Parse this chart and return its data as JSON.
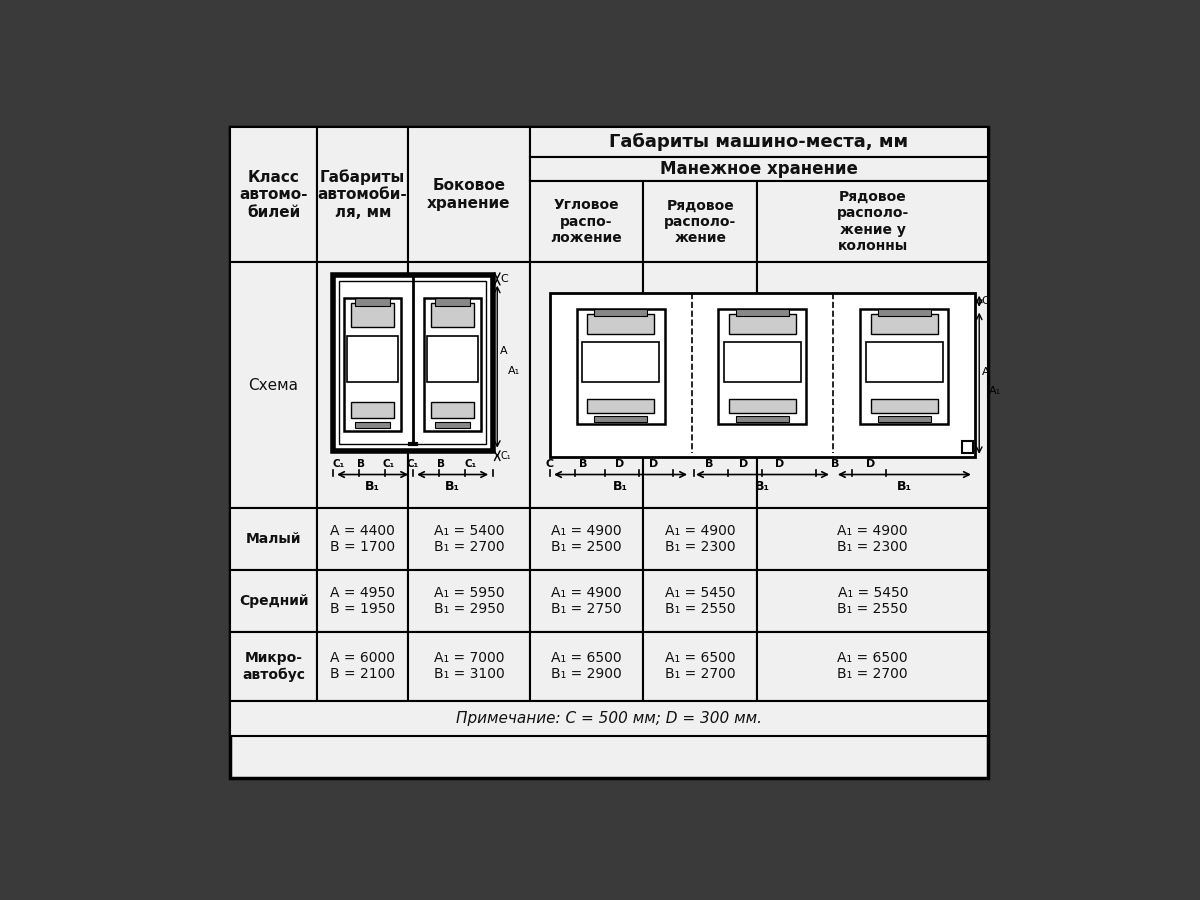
{
  "title": "Габариты машино-места, мм",
  "subtitle_manege": "Манежное хранение",
  "col_headers_0": "Класс\nавтомо-\nбилей",
  "col_headers_1": "Габариты\nавтомоби-\nля, мм",
  "col_headers_2": "Боковое\nхранение",
  "col_headers_3": "Угловое\nраспо-\nложение",
  "col_headers_4": "Рядовое\nрасполо-\nжение",
  "col_headers_5": "Рядовое\nрасполо-\nжение у\nколонны",
  "schema_row_label": "Схема",
  "row0_class": "Малый",
  "row0_dims": "A = 4400\nB = 1700",
  "row0_bok": "A₁ = 5400\nB₁ = 2700",
  "row0_ugl": "A₁ = 4900\nB₁ = 2500",
  "row0_rya": "A₁ = 4900\nB₁ = 2300",
  "row1_class": "Средний",
  "row1_dims": "A = 4950\nB = 1950",
  "row1_bok": "A₁ = 5950\nB₁ = 2950",
  "row1_ugl": "A₁ = 4900\nB₁ = 2750",
  "row1_rya": "A₁ = 5450\nB₁ = 2550",
  "row2_class": "Микро-\nавтобус",
  "row2_dims": "A = 6000\nB = 2100",
  "row2_bok": "A₁ = 7000\nB₁ = 3100",
  "row2_ugl": "A₁ = 6500\nB₁ = 2900",
  "row2_rya": "A₁ = 6500\nB₁ = 2700",
  "note": "Примечание: C = 500 мм; D = 300 мм.",
  "bg_color": "#3a3a3a",
  "table_bg": "#f0f0f0",
  "text_color": "#111111"
}
